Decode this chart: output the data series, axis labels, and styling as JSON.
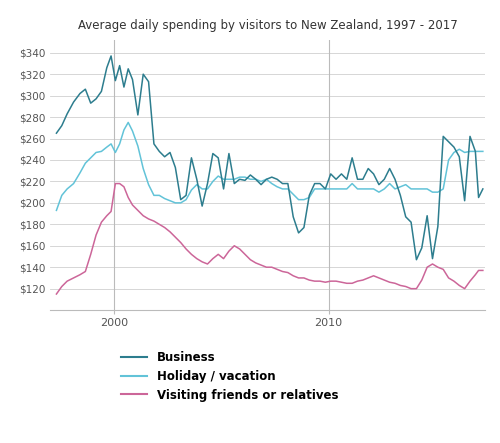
{
  "title": "Average daily spending by visitors to New Zealand, 1997 - 2017",
  "ylim": [
    100,
    352
  ],
  "yticks": [
    120,
    140,
    160,
    180,
    200,
    220,
    240,
    260,
    280,
    300,
    320,
    340
  ],
  "xlim_start": 1997.0,
  "xlim_end": 2017.3,
  "xtick_years": [
    2000,
    2010
  ],
  "vlines": [
    2000,
    2010
  ],
  "background_color": "#ffffff",
  "grid_color": "#d0d0d0",
  "vline_color": "#bbbbbb",
  "business_color": "#2d7d8e",
  "holiday_color": "#62c3d8",
  "friends_color": "#cc6699",
  "legend": [
    "Business",
    "Holiday / vacation",
    "Visiting friends or relatives"
  ],
  "business_x": [
    1997.3,
    1997.55,
    1997.8,
    1998.1,
    1998.4,
    1998.65,
    1998.9,
    1999.15,
    1999.4,
    1999.65,
    1999.85,
    2000.05,
    2000.25,
    2000.45,
    2000.65,
    2000.85,
    2001.1,
    2001.35,
    2001.6,
    2001.85,
    2002.1,
    2002.35,
    2002.6,
    2002.85,
    2003.1,
    2003.35,
    2003.6,
    2003.85,
    2004.1,
    2004.35,
    2004.6,
    2004.85,
    2005.1,
    2005.35,
    2005.6,
    2005.85,
    2006.1,
    2006.35,
    2006.6,
    2006.85,
    2007.1,
    2007.35,
    2007.6,
    2007.85,
    2008.1,
    2008.35,
    2008.6,
    2008.85,
    2009.1,
    2009.35,
    2009.6,
    2009.85,
    2010.1,
    2010.35,
    2010.6,
    2010.85,
    2011.1,
    2011.35,
    2011.6,
    2011.85,
    2012.1,
    2012.35,
    2012.6,
    2012.85,
    2013.1,
    2013.35,
    2013.6,
    2013.85,
    2014.1,
    2014.35,
    2014.6,
    2014.85,
    2015.1,
    2015.35,
    2015.6,
    2015.85,
    2016.1,
    2016.35,
    2016.6,
    2016.85,
    2017.0,
    2017.2
  ],
  "business_y": [
    265,
    272,
    283,
    294,
    302,
    306,
    293,
    297,
    304,
    326,
    337,
    314,
    328,
    308,
    325,
    315,
    282,
    320,
    313,
    255,
    248,
    243,
    247,
    233,
    203,
    207,
    242,
    222,
    197,
    218,
    246,
    242,
    213,
    246,
    218,
    222,
    221,
    226,
    222,
    217,
    222,
    224,
    222,
    218,
    218,
    187,
    172,
    177,
    207,
    218,
    218,
    213,
    227,
    222,
    227,
    222,
    242,
    222,
    222,
    232,
    227,
    217,
    222,
    232,
    222,
    207,
    187,
    182,
    147,
    158,
    188,
    148,
    178,
    262,
    257,
    252,
    243,
    202,
    262,
    248,
    205,
    213
  ],
  "holiday_x": [
    1997.3,
    1997.55,
    1997.8,
    1998.1,
    1998.4,
    1998.65,
    1998.9,
    1999.15,
    1999.4,
    1999.65,
    1999.85,
    2000.05,
    2000.25,
    2000.45,
    2000.65,
    2000.85,
    2001.1,
    2001.35,
    2001.6,
    2001.85,
    2002.1,
    2002.35,
    2002.6,
    2002.85,
    2003.1,
    2003.35,
    2003.6,
    2003.85,
    2004.1,
    2004.35,
    2004.6,
    2004.85,
    2005.1,
    2005.35,
    2005.6,
    2005.85,
    2006.1,
    2006.35,
    2006.6,
    2006.85,
    2007.1,
    2007.35,
    2007.6,
    2007.85,
    2008.1,
    2008.35,
    2008.6,
    2008.85,
    2009.1,
    2009.35,
    2009.6,
    2009.85,
    2010.1,
    2010.35,
    2010.6,
    2010.85,
    2011.1,
    2011.35,
    2011.6,
    2011.85,
    2012.1,
    2012.35,
    2012.6,
    2012.85,
    2013.1,
    2013.35,
    2013.6,
    2013.85,
    2014.1,
    2014.35,
    2014.6,
    2014.85,
    2015.1,
    2015.35,
    2015.6,
    2015.85,
    2016.1,
    2016.35,
    2016.6,
    2016.85,
    2017.0,
    2017.2
  ],
  "holiday_y": [
    193,
    207,
    213,
    218,
    228,
    237,
    242,
    247,
    248,
    252,
    255,
    247,
    255,
    268,
    275,
    267,
    253,
    232,
    217,
    207,
    207,
    204,
    202,
    200,
    200,
    203,
    212,
    217,
    213,
    213,
    220,
    225,
    222,
    222,
    222,
    224,
    224,
    222,
    222,
    220,
    222,
    218,
    215,
    213,
    213,
    208,
    203,
    203,
    205,
    213,
    213,
    213,
    213,
    213,
    213,
    213,
    218,
    213,
    213,
    213,
    213,
    210,
    213,
    218,
    213,
    215,
    217,
    213,
    213,
    213,
    213,
    210,
    210,
    213,
    240,
    247,
    250,
    247,
    248,
    248,
    248,
    248
  ],
  "friends_x": [
    1997.3,
    1997.55,
    1997.8,
    1998.1,
    1998.4,
    1998.65,
    1998.9,
    1999.15,
    1999.4,
    1999.65,
    1999.85,
    2000.05,
    2000.25,
    2000.45,
    2000.65,
    2000.85,
    2001.1,
    2001.35,
    2001.6,
    2001.85,
    2002.1,
    2002.35,
    2002.6,
    2002.85,
    2003.1,
    2003.35,
    2003.6,
    2003.85,
    2004.1,
    2004.35,
    2004.6,
    2004.85,
    2005.1,
    2005.35,
    2005.6,
    2005.85,
    2006.1,
    2006.35,
    2006.6,
    2006.85,
    2007.1,
    2007.35,
    2007.6,
    2007.85,
    2008.1,
    2008.35,
    2008.6,
    2008.85,
    2009.1,
    2009.35,
    2009.6,
    2009.85,
    2010.1,
    2010.35,
    2010.6,
    2010.85,
    2011.1,
    2011.35,
    2011.6,
    2011.85,
    2012.1,
    2012.35,
    2012.6,
    2012.85,
    2013.1,
    2013.35,
    2013.6,
    2013.85,
    2014.1,
    2014.35,
    2014.6,
    2014.85,
    2015.1,
    2015.35,
    2015.6,
    2015.85,
    2016.1,
    2016.35,
    2016.6,
    2016.85,
    2017.0,
    2017.2
  ],
  "friends_y": [
    115,
    122,
    127,
    130,
    133,
    136,
    152,
    170,
    182,
    188,
    192,
    218,
    218,
    215,
    205,
    198,
    193,
    188,
    185,
    183,
    180,
    177,
    173,
    168,
    163,
    157,
    152,
    148,
    145,
    143,
    148,
    152,
    148,
    155,
    160,
    157,
    152,
    147,
    144,
    142,
    140,
    140,
    138,
    136,
    135,
    132,
    130,
    130,
    128,
    127,
    127,
    126,
    127,
    127,
    126,
    125,
    125,
    127,
    128,
    130,
    132,
    130,
    128,
    126,
    125,
    123,
    122,
    120,
    120,
    128,
    140,
    143,
    140,
    138,
    130,
    127,
    123,
    120,
    127,
    133,
    137,
    137
  ]
}
